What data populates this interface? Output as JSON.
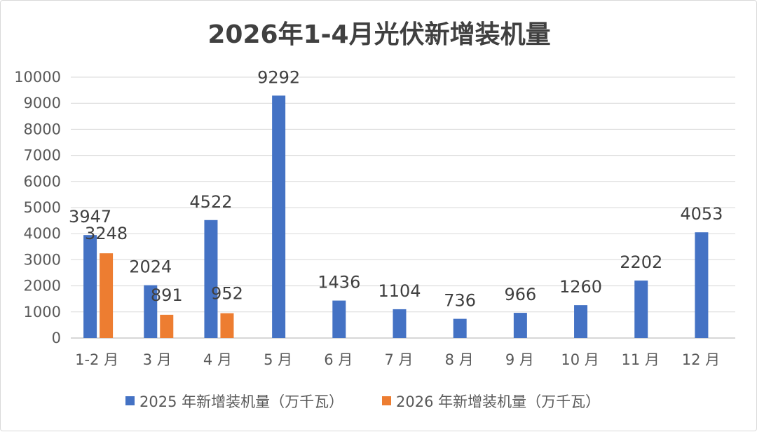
{
  "chart_data": {
    "type": "bar",
    "title": "2026年1-4月光伏新增装机量",
    "categories": [
      "1-2 月",
      "3 月",
      "4 月",
      "5 月",
      "6 月",
      "7 月",
      "8 月",
      "9 月",
      "10 月",
      "11 月",
      "12 月"
    ],
    "series": [
      {
        "name": "2025 年新增装机量（万千瓦）",
        "color": "#4472C4",
        "values": [
          3947,
          2024,
          4522,
          9292,
          1436,
          1104,
          736,
          966,
          1260,
          2202,
          4053
        ]
      },
      {
        "name": "2026 年新增装机量（万千瓦）",
        "color": "#ED7D31",
        "values": [
          3248,
          891,
          952,
          null,
          null,
          null,
          null,
          null,
          null,
          null,
          null
        ]
      }
    ],
    "ylim": [
      0,
      10000
    ],
    "yticks": [
      0,
      1000,
      2000,
      3000,
      4000,
      5000,
      6000,
      7000,
      8000,
      9000,
      10000
    ],
    "grid": true,
    "legend_position": "bottom",
    "xlabel": "",
    "ylabel": ""
  }
}
